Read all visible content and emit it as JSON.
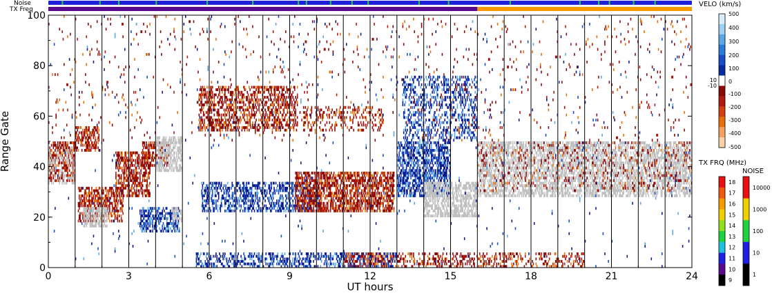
{
  "chart_data": {
    "type": "heatmap",
    "title": "",
    "xlabel": "UT hours",
    "ylabel": "Range Gate",
    "xlim": [
      0,
      24
    ],
    "ylim": [
      0,
      100
    ],
    "x_ticks": [
      0,
      3,
      6,
      9,
      12,
      15,
      18,
      21,
      24
    ],
    "x_tick_labels": [
      "0",
      "3",
      "6",
      "9",
      "12",
      "15",
      "18",
      "21",
      "24"
    ],
    "y_ticks": [
      0,
      20,
      40,
      60,
      80,
      100
    ],
    "y_tick_labels": [
      "0",
      "20",
      "40",
      "60",
      "80",
      "100"
    ],
    "hour_lines": [
      1,
      2,
      3,
      4,
      5,
      6,
      7,
      8,
      9,
      10,
      11,
      12,
      13,
      14,
      15,
      16,
      17,
      18,
      19,
      20,
      21,
      22,
      23
    ],
    "bands": {
      "noise_label": "Noise",
      "txfreq_label": "TX Freq",
      "noise_color": "#2020d8",
      "noise_flecks": [
        0.5,
        1.9,
        2.6,
        4.0,
        5.9,
        7.6,
        9.3,
        9.6,
        10.5,
        11.3,
        11.9,
        13.8,
        14.9,
        17.2,
        19.8,
        20.5,
        20.9,
        21.8,
        22.6
      ],
      "txfreq_segments": [
        {
          "start": 0,
          "end": 16,
          "color": "#5a0a8c"
        },
        {
          "start": 16,
          "end": 24,
          "color": "#f59a00"
        }
      ]
    },
    "velocity_colorbar": {
      "title": "VELO (km/s)",
      "ticks": [
        "500",
        "400",
        "300",
        "200",
        "100",
        "10",
        "0",
        "-10",
        "-100",
        "-200",
        "-300",
        "-400",
        "-500"
      ],
      "colors": [
        "#d8eefa",
        "#9ed0f2",
        "#5aa8e6",
        "#2e7ad8",
        "#1a4cc8",
        "#0a2aa0",
        "#ffffff",
        "#8a0a0a",
        "#b01a10",
        "#d04010",
        "#e8700a",
        "#f4a060",
        "#fad0a8"
      ]
    },
    "txfreq_colorbar": {
      "title": "TX FRQ (MHz)",
      "ticks": [
        "18",
        "17",
        "16",
        "15",
        "14",
        "13",
        "12",
        "11",
        "10",
        "9"
      ],
      "colors": [
        "#e81010",
        "#f05a10",
        "#f59a00",
        "#f0d000",
        "#90e020",
        "#20d040",
        "#20c0e0",
        "#2020e0",
        "#5a0a8c",
        "#000000"
      ]
    },
    "noise_colorbar": {
      "title": "NOISE",
      "ticks": [
        "10000",
        "1000",
        "100",
        "10",
        "1"
      ],
      "colors": [
        "#e81010",
        "#f0d000",
        "#20d040",
        "#2020e0",
        "#000000"
      ]
    },
    "colors": {
      "ground_scatter": "#c0c0c0",
      "positive_velocity": "#0a1a8c",
      "negative_velocity": "#8a0a0a"
    },
    "regions": [
      {
        "label": "",
        "type": "neg",
        "x0": 0.0,
        "x1": 1.0,
        "y0": 34,
        "y1": 50,
        "density": 0.55
      },
      {
        "label": "",
        "type": "gs",
        "x0": 0.0,
        "x1": 1.0,
        "y0": 33,
        "y1": 48,
        "density": 0.25
      },
      {
        "label": "",
        "type": "neg",
        "x0": 1.0,
        "x1": 1.9,
        "y0": 46,
        "y1": 56,
        "density": 0.5
      },
      {
        "label": "",
        "type": "neg",
        "x0": 1.1,
        "x1": 2.8,
        "y0": 18,
        "y1": 32,
        "density": 0.55
      },
      {
        "label": "",
        "type": "gs",
        "x0": 1.3,
        "x1": 2.2,
        "y0": 16,
        "y1": 24,
        "density": 0.6
      },
      {
        "label": "",
        "type": "neg",
        "x0": 2.5,
        "x1": 3.8,
        "y0": 28,
        "y1": 46,
        "density": 0.55
      },
      {
        "label": "",
        "type": "neg",
        "x0": 3.5,
        "x1": 4.5,
        "y0": 40,
        "y1": 50,
        "density": 0.5
      },
      {
        "label": "",
        "type": "gs",
        "x0": 4.0,
        "x1": 5.0,
        "y0": 38,
        "y1": 52,
        "density": 0.6
      },
      {
        "label": "",
        "type": "pos",
        "x0": 3.4,
        "x1": 4.9,
        "y0": 14,
        "y1": 24,
        "density": 0.5
      },
      {
        "label": "",
        "type": "gs",
        "x0": 4.6,
        "x1": 5.0,
        "y0": 18,
        "y1": 24,
        "density": 0.6
      },
      {
        "label": "",
        "type": "neg",
        "x0": 5.6,
        "x1": 9.3,
        "y0": 54,
        "y1": 72,
        "density": 0.45
      },
      {
        "label": "",
        "type": "pos",
        "x0": 5.7,
        "x1": 10.2,
        "y0": 22,
        "y1": 34,
        "density": 0.45
      },
      {
        "label": "",
        "type": "neg",
        "x0": 9.2,
        "x1": 12.9,
        "y0": 22,
        "y1": 38,
        "density": 0.6
      },
      {
        "label": "",
        "type": "neg",
        "x0": 9.5,
        "x1": 12.5,
        "y0": 54,
        "y1": 64,
        "density": 0.25
      },
      {
        "label": "",
        "type": "pos",
        "x0": 13.0,
        "x1": 15.0,
        "y0": 28,
        "y1": 50,
        "density": 0.55
      },
      {
        "label": "",
        "type": "gs",
        "x0": 14.0,
        "x1": 16.0,
        "y0": 20,
        "y1": 34,
        "density": 0.6
      },
      {
        "label": "",
        "type": "pos",
        "x0": 13.2,
        "x1": 16.0,
        "y0": 50,
        "y1": 76,
        "density": 0.3
      },
      {
        "label": "",
        "type": "gs",
        "x0": 16.0,
        "x1": 24.0,
        "y0": 28,
        "y1": 50,
        "density": 0.55
      },
      {
        "label": "",
        "type": "neg",
        "x0": 16.0,
        "x1": 24.0,
        "y0": 30,
        "y1": 50,
        "density": 0.1
      },
      {
        "label": "",
        "type": "pos",
        "x0": 5.5,
        "x1": 13.0,
        "y0": 0,
        "y1": 6,
        "density": 0.4
      },
      {
        "label": "",
        "type": "neg",
        "x0": 11.0,
        "x1": 20.0,
        "y0": 0,
        "y1": 6,
        "density": 0.3
      },
      {
        "label": "",
        "type": "neg",
        "x0": 0.0,
        "x1": 24.0,
        "y0": 50,
        "y1": 100,
        "density": 0.02
      },
      {
        "label": "",
        "type": "pos",
        "x0": 0.0,
        "x1": 24.0,
        "y0": 0,
        "y1": 100,
        "density": 0.008
      }
    ]
  }
}
